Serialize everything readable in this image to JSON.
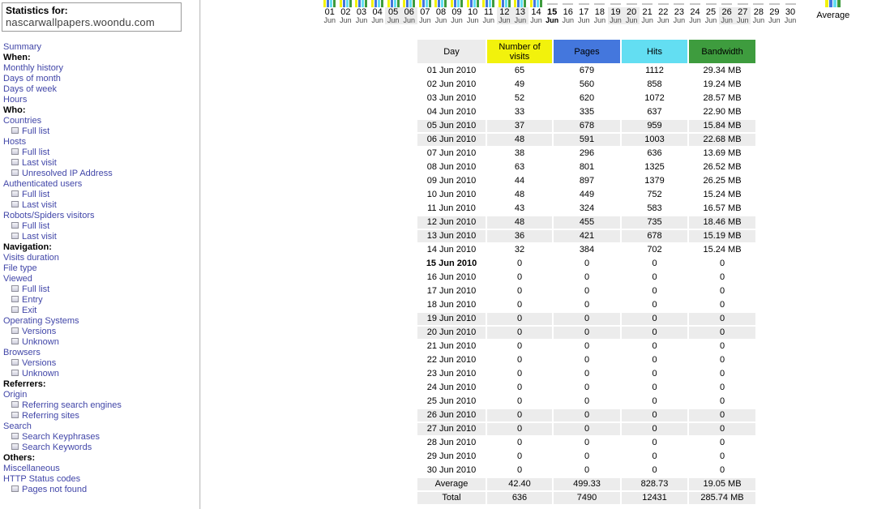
{
  "colors": {
    "visits_yellow": "#F2F20C",
    "pages_blue": "#4477DD",
    "hits_cyan": "#63DEF2",
    "bandwidth_green": "#3E9C3E",
    "row_shade_gray": "#ECECEC",
    "link_blue": "#4146A8"
  },
  "header": {
    "stats_for_label": "Statistics for:",
    "domain": "nascarwallpapers.woondu.com"
  },
  "sidebar": {
    "items": [
      {
        "label": "Summary",
        "cls": "link",
        "inter": "true",
        "name": "sidebar-item-summary"
      },
      {
        "label": "When:",
        "cls": "head",
        "inter": "false",
        "name": "sidebar-section-when"
      },
      {
        "label": "Monthly history",
        "cls": "link",
        "inter": "true",
        "name": "sidebar-item-monthly-history"
      },
      {
        "label": "Days of month",
        "cls": "link",
        "inter": "true",
        "name": "sidebar-item-days-of-month"
      },
      {
        "label": "Days of week",
        "cls": "link",
        "inter": "true",
        "name": "sidebar-item-days-of-week"
      },
      {
        "label": "Hours",
        "cls": "link",
        "inter": "true",
        "name": "sidebar-item-hours"
      },
      {
        "label": "Who:",
        "cls": "head",
        "inter": "false",
        "name": "sidebar-section-who"
      },
      {
        "label": "Countries",
        "cls": "link",
        "inter": "true",
        "name": "sidebar-item-countries"
      },
      {
        "label": "Full list",
        "cls": "sub",
        "inter": "true",
        "name": "sidebar-item-countries-full-list"
      },
      {
        "label": "Hosts",
        "cls": "link",
        "inter": "true",
        "name": "sidebar-item-hosts"
      },
      {
        "label": "Full list",
        "cls": "sub",
        "inter": "true",
        "name": "sidebar-item-hosts-full-list"
      },
      {
        "label": "Last visit",
        "cls": "sub",
        "inter": "true",
        "name": "sidebar-item-hosts-last-visit"
      },
      {
        "label": "Unresolved IP Address",
        "cls": "sub",
        "inter": "true",
        "name": "sidebar-item-unresolved-ip-address"
      },
      {
        "label": "Authenticated users",
        "cls": "link",
        "inter": "true",
        "name": "sidebar-item-authenticated-users"
      },
      {
        "label": "Full list",
        "cls": "sub",
        "inter": "true",
        "name": "sidebar-item-auth-users-full-list"
      },
      {
        "label": "Last visit",
        "cls": "sub",
        "inter": "true",
        "name": "sidebar-item-auth-users-last-visit"
      },
      {
        "label": "Robots/Spiders visitors",
        "cls": "link",
        "inter": "true",
        "name": "sidebar-item-robots-spiders-visitors"
      },
      {
        "label": "Full list",
        "cls": "sub",
        "inter": "true",
        "name": "sidebar-item-robots-full-list"
      },
      {
        "label": "Last visit",
        "cls": "sub",
        "inter": "true",
        "name": "sidebar-item-robots-last-visit"
      },
      {
        "label": "Navigation:",
        "cls": "head",
        "inter": "false",
        "name": "sidebar-section-navigation"
      },
      {
        "label": "Visits duration",
        "cls": "link",
        "inter": "true",
        "name": "sidebar-item-visits-duration"
      },
      {
        "label": "File type",
        "cls": "link",
        "inter": "true",
        "name": "sidebar-item-file-type"
      },
      {
        "label": "Viewed",
        "cls": "link",
        "inter": "true",
        "name": "sidebar-item-viewed"
      },
      {
        "label": "Full list",
        "cls": "sub",
        "inter": "true",
        "name": "sidebar-item-viewed-full-list"
      },
      {
        "label": "Entry",
        "cls": "sub",
        "inter": "true",
        "name": "sidebar-item-entry"
      },
      {
        "label": "Exit",
        "cls": "sub",
        "inter": "true",
        "name": "sidebar-item-exit"
      },
      {
        "label": "Operating Systems",
        "cls": "link",
        "inter": "true",
        "name": "sidebar-item-operating-systems"
      },
      {
        "label": "Versions",
        "cls": "sub",
        "inter": "true",
        "name": "sidebar-item-os-versions"
      },
      {
        "label": "Unknown",
        "cls": "sub",
        "inter": "true",
        "name": "sidebar-item-os-unknown"
      },
      {
        "label": "Browsers",
        "cls": "link",
        "inter": "true",
        "name": "sidebar-item-browsers"
      },
      {
        "label": "Versions",
        "cls": "sub",
        "inter": "true",
        "name": "sidebar-item-browsers-versions"
      },
      {
        "label": "Unknown",
        "cls": "sub",
        "inter": "true",
        "name": "sidebar-item-browsers-unknown"
      },
      {
        "label": "Referrers:",
        "cls": "head",
        "inter": "false",
        "name": "sidebar-section-referrers"
      },
      {
        "label": "Origin",
        "cls": "link",
        "inter": "true",
        "name": "sidebar-item-origin"
      },
      {
        "label": "Referring search engines",
        "cls": "sub",
        "inter": "true",
        "name": "sidebar-item-referring-search-engines"
      },
      {
        "label": "Referring sites",
        "cls": "sub",
        "inter": "true",
        "name": "sidebar-item-referring-sites"
      },
      {
        "label": "Search",
        "cls": "link",
        "inter": "true",
        "name": "sidebar-item-search"
      },
      {
        "label": "Search Keyphrases",
        "cls": "sub",
        "inter": "true",
        "name": "sidebar-item-search-keyphrases"
      },
      {
        "label": "Search Keywords",
        "cls": "sub",
        "inter": "true",
        "name": "sidebar-item-search-keywords"
      },
      {
        "label": "Others:",
        "cls": "head",
        "inter": "false",
        "name": "sidebar-section-others"
      },
      {
        "label": "Miscellaneous",
        "cls": "link",
        "inter": "true",
        "name": "sidebar-item-miscellaneous"
      },
      {
        "label": "HTTP Status codes",
        "cls": "link",
        "inter": "true",
        "name": "sidebar-item-http-status-codes"
      },
      {
        "label": "Pages not found",
        "cls": "sub",
        "inter": "true",
        "name": "sidebar-item-pages-not-found"
      }
    ]
  },
  "chart": {
    "average_label": "Average",
    "days": [
      {
        "num": "01",
        "mon": "Jun",
        "cls": "data"
      },
      {
        "num": "02",
        "mon": "Jun",
        "cls": "data"
      },
      {
        "num": "03",
        "mon": "Jun",
        "cls": "data"
      },
      {
        "num": "04",
        "mon": "Jun",
        "cls": "data"
      },
      {
        "num": "05",
        "mon": "Jun",
        "cls": "data wk"
      },
      {
        "num": "06",
        "mon": "Jun",
        "cls": "data wk"
      },
      {
        "num": "07",
        "mon": "Jun",
        "cls": "data"
      },
      {
        "num": "08",
        "mon": "Jun",
        "cls": "data"
      },
      {
        "num": "09",
        "mon": "Jun",
        "cls": "data"
      },
      {
        "num": "10",
        "mon": "Jun",
        "cls": "data"
      },
      {
        "num": "11",
        "mon": "Jun",
        "cls": "data"
      },
      {
        "num": "12",
        "mon": "Jun",
        "cls": "data wk"
      },
      {
        "num": "13",
        "mon": "Jun",
        "cls": "data wk"
      },
      {
        "num": "14",
        "mon": "Jun",
        "cls": "data"
      },
      {
        "num": "15",
        "mon": "Jun",
        "cls": "zero today"
      },
      {
        "num": "16",
        "mon": "Jun",
        "cls": "zero"
      },
      {
        "num": "17",
        "mon": "Jun",
        "cls": "zero"
      },
      {
        "num": "18",
        "mon": "Jun",
        "cls": "zero"
      },
      {
        "num": "19",
        "mon": "Jun",
        "cls": "zero wk"
      },
      {
        "num": "20",
        "mon": "Jun",
        "cls": "zero wk"
      },
      {
        "num": "21",
        "mon": "Jun",
        "cls": "zero"
      },
      {
        "num": "22",
        "mon": "Jun",
        "cls": "zero"
      },
      {
        "num": "23",
        "mon": "Jun",
        "cls": "zero"
      },
      {
        "num": "24",
        "mon": "Jun",
        "cls": "zero"
      },
      {
        "num": "25",
        "mon": "Jun",
        "cls": "zero"
      },
      {
        "num": "26",
        "mon": "Jun",
        "cls": "zero wk"
      },
      {
        "num": "27",
        "mon": "Jun",
        "cls": "zero wk"
      },
      {
        "num": "28",
        "mon": "Jun",
        "cls": "zero"
      },
      {
        "num": "29",
        "mon": "Jun",
        "cls": "zero"
      },
      {
        "num": "30",
        "mon": "Jun",
        "cls": "zero"
      }
    ]
  },
  "table": {
    "headers": [
      "Day",
      "Number of visits",
      "Pages",
      "Hits",
      "Bandwidth"
    ],
    "rows": [
      {
        "d": "01 Jun 2010",
        "v": "65",
        "p": "679",
        "h": "1112",
        "b": "29.34 MB",
        "cls": "plain"
      },
      {
        "d": "02 Jun 2010",
        "v": "49",
        "p": "560",
        "h": "858",
        "b": "19.24 MB",
        "cls": "plain"
      },
      {
        "d": "03 Jun 2010",
        "v": "52",
        "p": "620",
        "h": "1072",
        "b": "28.57 MB",
        "cls": "plain"
      },
      {
        "d": "04 Jun 2010",
        "v": "33",
        "p": "335",
        "h": "637",
        "b": "22.90 MB",
        "cls": "plain"
      },
      {
        "d": "05 Jun 2010",
        "v": "37",
        "p": "678",
        "h": "959",
        "b": "15.84 MB",
        "cls": "shade"
      },
      {
        "d": "06 Jun 2010",
        "v": "48",
        "p": "591",
        "h": "1003",
        "b": "22.68 MB",
        "cls": "shade"
      },
      {
        "d": "07 Jun 2010",
        "v": "38",
        "p": "296",
        "h": "636",
        "b": "13.69 MB",
        "cls": "plain"
      },
      {
        "d": "08 Jun 2010",
        "v": "63",
        "p": "801",
        "h": "1325",
        "b": "26.52 MB",
        "cls": "plain"
      },
      {
        "d": "09 Jun 2010",
        "v": "44",
        "p": "897",
        "h": "1379",
        "b": "26.25 MB",
        "cls": "plain"
      },
      {
        "d": "10 Jun 2010",
        "v": "48",
        "p": "449",
        "h": "752",
        "b": "15.24 MB",
        "cls": "plain"
      },
      {
        "d": "11 Jun 2010",
        "v": "43",
        "p": "324",
        "h": "583",
        "b": "16.57 MB",
        "cls": "plain"
      },
      {
        "d": "12 Jun 2010",
        "v": "48",
        "p": "455",
        "h": "735",
        "b": "18.46 MB",
        "cls": "shade"
      },
      {
        "d": "13 Jun 2010",
        "v": "36",
        "p": "421",
        "h": "678",
        "b": "15.19 MB",
        "cls": "shade"
      },
      {
        "d": "14 Jun 2010",
        "v": "32",
        "p": "384",
        "h": "702",
        "b": "15.24 MB",
        "cls": "plain"
      },
      {
        "d": "15 Jun 2010",
        "v": "0",
        "p": "0",
        "h": "0",
        "b": "0",
        "cls": "today"
      },
      {
        "d": "16 Jun 2010",
        "v": "0",
        "p": "0",
        "h": "0",
        "b": "0",
        "cls": "plain"
      },
      {
        "d": "17 Jun 2010",
        "v": "0",
        "p": "0",
        "h": "0",
        "b": "0",
        "cls": "plain"
      },
      {
        "d": "18 Jun 2010",
        "v": "0",
        "p": "0",
        "h": "0",
        "b": "0",
        "cls": "plain"
      },
      {
        "d": "19 Jun 2010",
        "v": "0",
        "p": "0",
        "h": "0",
        "b": "0",
        "cls": "shade"
      },
      {
        "d": "20 Jun 2010",
        "v": "0",
        "p": "0",
        "h": "0",
        "b": "0",
        "cls": "shade"
      },
      {
        "d": "21 Jun 2010",
        "v": "0",
        "p": "0",
        "h": "0",
        "b": "0",
        "cls": "plain"
      },
      {
        "d": "22 Jun 2010",
        "v": "0",
        "p": "0",
        "h": "0",
        "b": "0",
        "cls": "plain"
      },
      {
        "d": "23 Jun 2010",
        "v": "0",
        "p": "0",
        "h": "0",
        "b": "0",
        "cls": "plain"
      },
      {
        "d": "24 Jun 2010",
        "v": "0",
        "p": "0",
        "h": "0",
        "b": "0",
        "cls": "plain"
      },
      {
        "d": "25 Jun 2010",
        "v": "0",
        "p": "0",
        "h": "0",
        "b": "0",
        "cls": "plain"
      },
      {
        "d": "26 Jun 2010",
        "v": "0",
        "p": "0",
        "h": "0",
        "b": "0",
        "cls": "shade"
      },
      {
        "d": "27 Jun 2010",
        "v": "0",
        "p": "0",
        "h": "0",
        "b": "0",
        "cls": "shade"
      },
      {
        "d": "28 Jun 2010",
        "v": "0",
        "p": "0",
        "h": "0",
        "b": "0",
        "cls": "plain"
      },
      {
        "d": "29 Jun 2010",
        "v": "0",
        "p": "0",
        "h": "0",
        "b": "0",
        "cls": "plain"
      },
      {
        "d": "30 Jun 2010",
        "v": "0",
        "p": "0",
        "h": "0",
        "b": "0",
        "cls": "plain"
      },
      {
        "d": "Average",
        "v": "42.40",
        "p": "499.33",
        "h": "828.73",
        "b": "19.05 MB",
        "cls": "shade"
      },
      {
        "d": "Total",
        "v": "636",
        "p": "7490",
        "h": "12431",
        "b": "285.74 MB",
        "cls": "shade"
      }
    ]
  }
}
